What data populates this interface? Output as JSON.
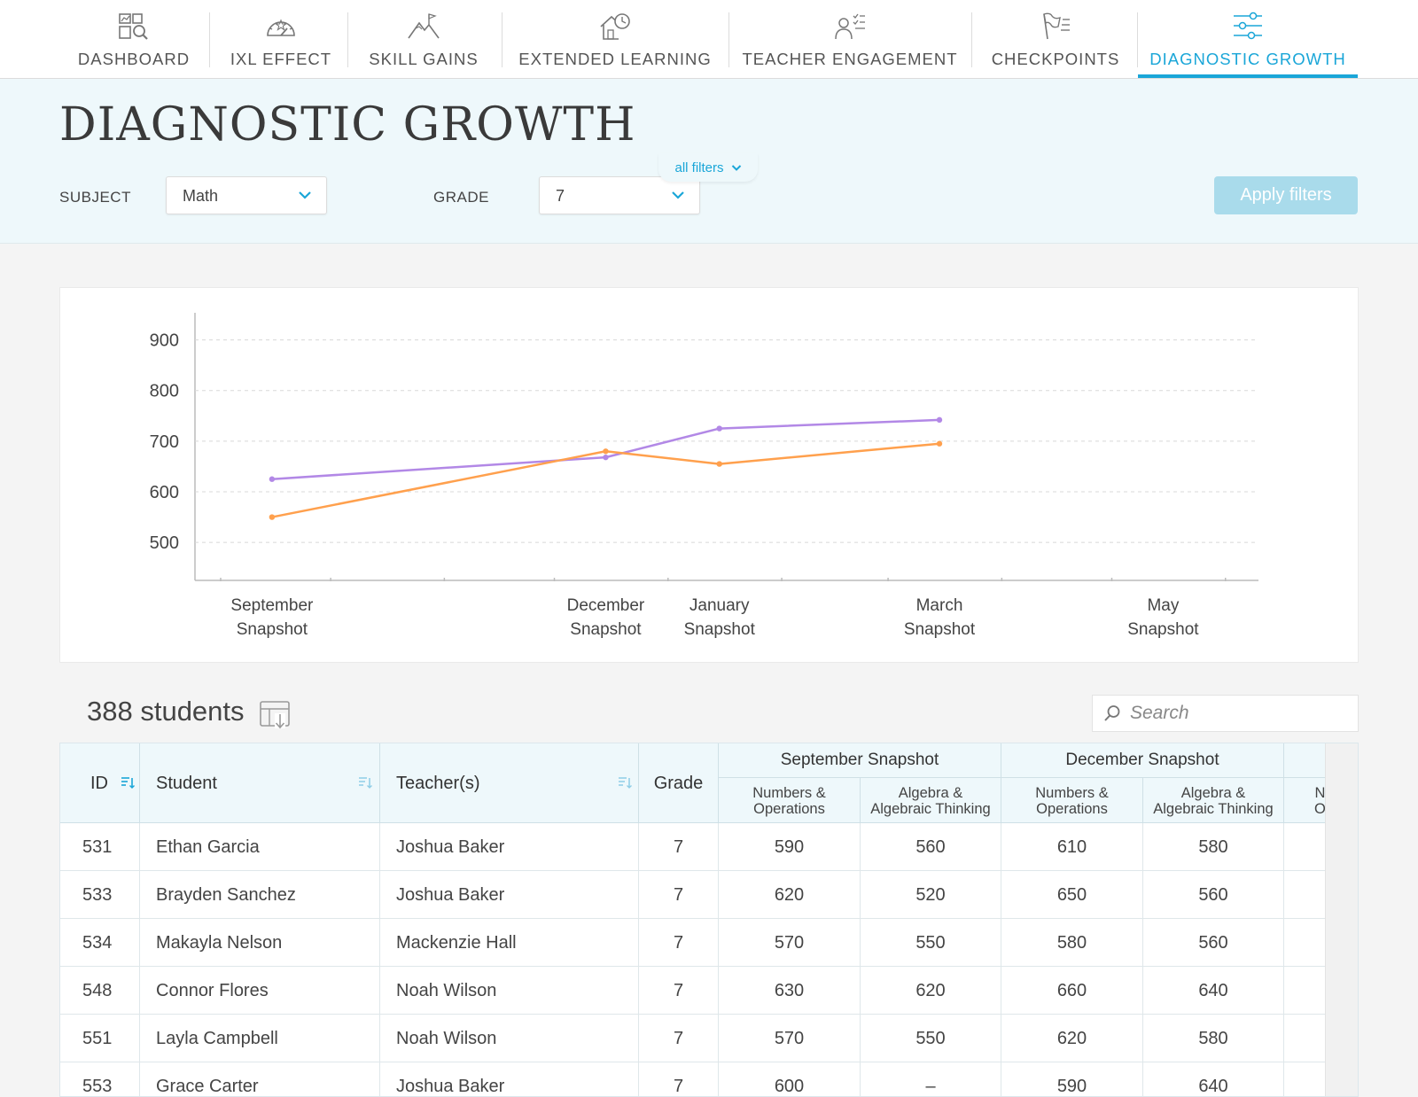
{
  "nav": {
    "items": [
      {
        "label": "DASHBOARD",
        "icon": "dashboard-icon"
      },
      {
        "label": "IXL EFFECT",
        "icon": "gauge-icon"
      },
      {
        "label": "SKILL GAINS",
        "icon": "mountain-flag-icon"
      },
      {
        "label": "EXTENDED LEARNING",
        "icon": "house-clock-icon"
      },
      {
        "label": "TEACHER ENGAGEMENT",
        "icon": "teacher-checklist-icon"
      },
      {
        "label": "CHECKPOINTS",
        "icon": "flag-list-icon"
      },
      {
        "label": "DIAGNOSTIC GROWTH",
        "icon": "sliders-icon",
        "active": true
      }
    ]
  },
  "header": {
    "title": "DIAGNOSTIC GROWTH",
    "subject_label": "SUBJECT",
    "subject_value": "Math",
    "grade_label": "GRADE",
    "grade_value": "7",
    "apply_label": "Apply filters",
    "all_filters_label": "all filters"
  },
  "chart_data": {
    "type": "line",
    "categories": [
      "September Snapshot",
      "",
      "",
      "December Snapshot",
      "January Snapshot",
      "March Snapshot",
      "May Snapshot"
    ],
    "x_labels": [
      {
        "line1": "September",
        "line2": "Snapshot",
        "x": "2023-09-15"
      },
      {
        "line1": "December",
        "line2": "Snapshot",
        "x": "2023-12-15"
      },
      {
        "line1": "January",
        "line2": "Snapshot",
        "x": "2024-01-15"
      },
      {
        "line1": "March",
        "line2": "Snapshot",
        "x": "2024-03-15"
      },
      {
        "line1": "May",
        "line2": "Snapshot",
        "x": "2024-05-15"
      }
    ],
    "series": [
      {
        "color": "#b288e6",
        "points": [
          {
            "x": "2023-09-15",
            "y": 625
          },
          {
            "x": "2023-12-15",
            "y": 668
          },
          {
            "x": "2024-01-15",
            "y": 725
          },
          {
            "x": "2024-03-15",
            "y": 742
          }
        ]
      },
      {
        "color": "#ffa04d",
        "points": [
          {
            "x": "2023-09-15",
            "y": 550
          },
          {
            "x": "2023-12-15",
            "y": 680
          },
          {
            "x": "2024-01-15",
            "y": 655
          },
          {
            "x": "2024-03-15",
            "y": 695
          }
        ]
      }
    ],
    "yticks": [
      500,
      600,
      700,
      800,
      900
    ],
    "ylim": [
      425,
      950
    ],
    "xlim": [
      "2023-08-25",
      "2024-06-10"
    ],
    "grid": true,
    "legend": "none"
  },
  "students": {
    "count_label": "388 students",
    "search_placeholder": "Search"
  },
  "table": {
    "headers": {
      "id": "ID",
      "student": "Student",
      "teacher": "Teacher(s)",
      "grade": "Grade"
    },
    "groups": [
      "September Snapshot",
      "December Snapshot"
    ],
    "subheaders": [
      [
        "Numbers &",
        "Operations"
      ],
      [
        "Algebra &",
        "Algebraic Thinking"
      ],
      [
        "Numbers &",
        "Operations"
      ],
      [
        "Algebra &",
        "Algebraic Thinking"
      ],
      [
        "N",
        "O"
      ]
    ],
    "rows": [
      {
        "id": "531",
        "student": "Ethan Garcia",
        "teacher": "Joshua Baker",
        "grade": "7",
        "sep_no": "590",
        "sep_alg": "560",
        "dec_no": "610",
        "dec_alg": "580"
      },
      {
        "id": "533",
        "student": "Brayden Sanchez",
        "teacher": "Joshua Baker",
        "grade": "7",
        "sep_no": "620",
        "sep_alg": "520",
        "dec_no": "650",
        "dec_alg": "560"
      },
      {
        "id": "534",
        "student": "Makayla Nelson",
        "teacher": "Mackenzie Hall",
        "grade": "7",
        "sep_no": "570",
        "sep_alg": "550",
        "dec_no": "580",
        "dec_alg": "560"
      },
      {
        "id": "548",
        "student": "Connor Flores",
        "teacher": "Noah Wilson",
        "grade": "7",
        "sep_no": "630",
        "sep_alg": "620",
        "dec_no": "660",
        "dec_alg": "640"
      },
      {
        "id": "551",
        "student": "Layla Campbell",
        "teacher": "Noah Wilson",
        "grade": "7",
        "sep_no": "570",
        "sep_alg": "550",
        "dec_no": "620",
        "dec_alg": "580"
      },
      {
        "id": "553",
        "student": "Grace Carter",
        "teacher": "Joshua Baker",
        "grade": "7",
        "sep_no": "600",
        "sep_alg": "–",
        "dec_no": "590",
        "dec_alg": "640"
      }
    ]
  },
  "colors": {
    "accent": "#1aa6d8",
    "purple_series": "#b288e6",
    "orange_series": "#ffa04d"
  }
}
